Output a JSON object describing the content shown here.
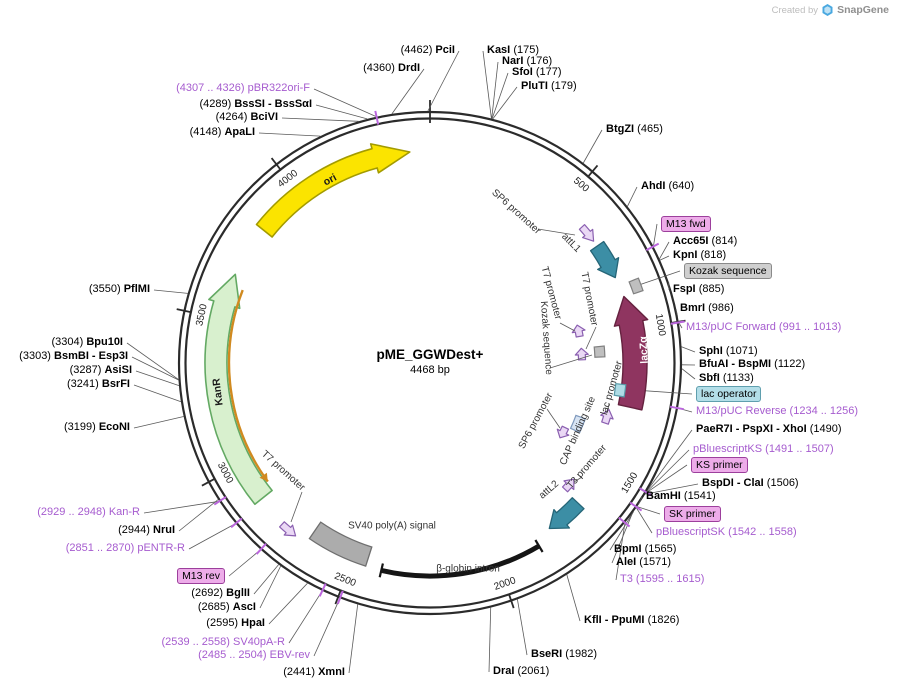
{
  "watermark": {
    "created_by": "Created by",
    "brand": "SnapGene"
  },
  "plasmid": {
    "name": "pME_GGWDest+",
    "size_label": "4468 bp"
  },
  "ticks": [
    "500",
    "1000",
    "1500",
    "2000",
    "2500",
    "3000",
    "3500",
    "4000"
  ],
  "outer_labels": [
    {
      "name": "PciI",
      "pos": "(4462)",
      "kind": "enzyme"
    },
    {
      "name": "KasI",
      "pos": "(175)",
      "kind": "enzyme"
    },
    {
      "name": "NarI",
      "pos": "(176)",
      "kind": "enzyme"
    },
    {
      "name": "SfoI",
      "pos": "(177)",
      "kind": "enzyme"
    },
    {
      "name": "PluTI",
      "pos": "(179)",
      "kind": "enzyme"
    },
    {
      "name": "DrdI",
      "pos": "(4360)",
      "kind": "enzyme"
    },
    {
      "name": "pBR322ori-F",
      "pos": "(4307 .. 4326)",
      "kind": "primer"
    },
    {
      "name": "BssSI - BssSαI",
      "pos": "(4289)",
      "kind": "enzyme"
    },
    {
      "name": "BciVI",
      "pos": "(4264)",
      "kind": "enzyme"
    },
    {
      "name": "ApaLI",
      "pos": "(4148)",
      "kind": "enzyme"
    },
    {
      "name": "BtgZI",
      "pos": "(465)",
      "kind": "enzyme"
    },
    {
      "name": "AhdI",
      "pos": "(640)",
      "kind": "enzyme"
    },
    {
      "name": "M13 fwd",
      "pos": "",
      "kind": "primer-box"
    },
    {
      "name": "Acc65I",
      "pos": "(814)",
      "kind": "enzyme"
    },
    {
      "name": "KpnI",
      "pos": "(818)",
      "kind": "enzyme"
    },
    {
      "name": "Kozak sequence",
      "pos": "",
      "kind": "misc-box"
    },
    {
      "name": "FspI",
      "pos": "(885)",
      "kind": "enzyme"
    },
    {
      "name": "BmrI",
      "pos": "(986)",
      "kind": "enzyme"
    },
    {
      "name": "M13/pUC Forward",
      "pos": "(991 .. 1013)",
      "kind": "primer"
    },
    {
      "name": "SphI",
      "pos": "(1071)",
      "kind": "enzyme"
    },
    {
      "name": "BfuAI - BspMI",
      "pos": "(1122)",
      "kind": "enzyme"
    },
    {
      "name": "SbfI",
      "pos": "(1133)",
      "kind": "enzyme"
    },
    {
      "name": "lac operator",
      "pos": "",
      "kind": "operator-box"
    },
    {
      "name": "M13/pUC Reverse",
      "pos": "(1234 .. 1256)",
      "kind": "primer"
    },
    {
      "name": "PaeR7I - PspXI - XhoI",
      "pos": "(1490)",
      "kind": "enzyme"
    },
    {
      "name": "pBluescriptKS",
      "pos": "(1491 .. 1507)",
      "kind": "primer"
    },
    {
      "name": "KS primer",
      "pos": "",
      "kind": "primer-box"
    },
    {
      "name": "BspDI - ClaI",
      "pos": "(1506)",
      "kind": "enzyme"
    },
    {
      "name": "BamHI",
      "pos": "(1541)",
      "kind": "enzyme"
    },
    {
      "name": "SK primer",
      "pos": "",
      "kind": "primer-box"
    },
    {
      "name": "pBluescriptSK",
      "pos": "(1542 .. 1558)",
      "kind": "primer"
    },
    {
      "name": "BpmI",
      "pos": "(1565)",
      "kind": "enzyme"
    },
    {
      "name": "AleI",
      "pos": "(1571)",
      "kind": "enzyme"
    },
    {
      "name": "T3",
      "pos": "(1595 .. 1615)",
      "kind": "primer"
    },
    {
      "name": "KflI - PpuMI",
      "pos": "(1826)",
      "kind": "enzyme"
    },
    {
      "name": "BseRI",
      "pos": "(1982)",
      "kind": "enzyme"
    },
    {
      "name": "DraI",
      "pos": "(2061)",
      "kind": "enzyme"
    },
    {
      "name": "XmnI",
      "pos": "(2441)",
      "kind": "enzyme"
    },
    {
      "name": "EBV-rev",
      "pos": "(2485 .. 2504)",
      "kind": "primer"
    },
    {
      "name": "SV40pA-R",
      "pos": "(2539 .. 2558)",
      "kind": "primer"
    },
    {
      "name": "HpaI",
      "pos": "(2595)",
      "kind": "enzyme"
    },
    {
      "name": "AscI",
      "pos": "(2685)",
      "kind": "enzyme"
    },
    {
      "name": "BglII",
      "pos": "(2692)",
      "kind": "enzyme"
    },
    {
      "name": "M13 rev",
      "pos": "",
      "kind": "primer-box"
    },
    {
      "name": "pENTR-R",
      "pos": "(2851 .. 2870)",
      "kind": "primer"
    },
    {
      "name": "NruI",
      "pos": "(2944)",
      "kind": "enzyme"
    },
    {
      "name": "Kan-R",
      "pos": "(2929 .. 2948)",
      "kind": "primer"
    },
    {
      "name": "EcoNI",
      "pos": "(3199)",
      "kind": "enzyme"
    },
    {
      "name": "BsrFI",
      "pos": "(3241)",
      "kind": "enzyme"
    },
    {
      "name": "AsiSI",
      "pos": "(3287)",
      "kind": "enzyme"
    },
    {
      "name": "BsmBI - Esp3I",
      "pos": "(3303)",
      "kind": "enzyme"
    },
    {
      "name": "Bpu10I",
      "pos": "(3304)",
      "kind": "enzyme"
    },
    {
      "name": "PflMI",
      "pos": "(3550)",
      "kind": "enzyme"
    }
  ],
  "inner_labels": {
    "sp6_top": "SP6 promoter",
    "attl1": "attL1",
    "t7_a": "T7 promoter",
    "t7_b": "T7 promoter",
    "kozak_inner": "Kozak sequence",
    "sp6_mid": "SP6 promoter",
    "cap": "CAP binding site",
    "lac_prom": "lac promoter",
    "t3_prom": "T3 promoter",
    "attl2": "attL2",
    "lacza": "lacZα",
    "kanr": "KanR",
    "ori": "ori",
    "t7_left": "T7 promoter",
    "sv40": "SV40 poly(A) signal",
    "intron": "β-globin intron"
  },
  "colors": {
    "ring": "#2B2B2B",
    "leader": "#5A5A5A",
    "primer_text": "#A65CCF",
    "primer_tick": "#BB66DD",
    "ori_fill": "#FBE400",
    "ori_stroke": "#A39B00",
    "kanr_fill": "#D8F0CE",
    "kanr_stroke": "#63A963",
    "kanr_inner": "#D08A20",
    "lacza_fill": "#8F3560",
    "lacza_stroke": "#65223F",
    "att_fill": "#3C8EA5",
    "att_stroke": "#256577",
    "promoter_fill": "#EAD8F5",
    "promoter_stroke": "#8A5FB0",
    "misc_gray_fill": "#BFBFBF",
    "misc_gray_stroke": "#808080",
    "lacop_fill": "#AFDCE6",
    "lacop_stroke": "#579AA8",
    "cap_fill": "#D7E3F2",
    "cap_stroke": "#7E98BC",
    "sv40_fill": "#ACACAC",
    "sv40_stroke": "#6F6F6F",
    "intron": "#151515",
    "box_pink_bg": "#EDACE9",
    "box_pink_border": "#9C3F9C",
    "box_gray_bg": "#CFCFCF",
    "box_gray_border": "#8A8A8A",
    "box_cyan_bg": "#B3DEE8",
    "box_cyan_border": "#5F9FAE",
    "brand_blue": "#49A8E0"
  }
}
